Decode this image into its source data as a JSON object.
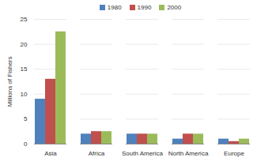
{
  "chart_data": {
    "type": "bar",
    "categories": [
      "Asia",
      "Africa",
      "South America",
      "North America",
      "Europe"
    ],
    "series": [
      {
        "name": "1980",
        "color": "#4f81bd",
        "values": [
          9,
          2,
          2,
          1,
          1
        ]
      },
      {
        "name": "1990",
        "color": "#c0504d",
        "values": [
          13,
          2.5,
          2,
          2,
          0.5
        ]
      },
      {
        "name": "2000",
        "color": "#9bbb59",
        "values": [
          22.5,
          2.5,
          2,
          2,
          1
        ]
      }
    ],
    "y_label": "Millions of Fishers",
    "ylim": [
      0,
      25
    ],
    "yticks": [
      0,
      5,
      10,
      15,
      20,
      25
    ],
    "grid": true,
    "legend": "top"
  }
}
